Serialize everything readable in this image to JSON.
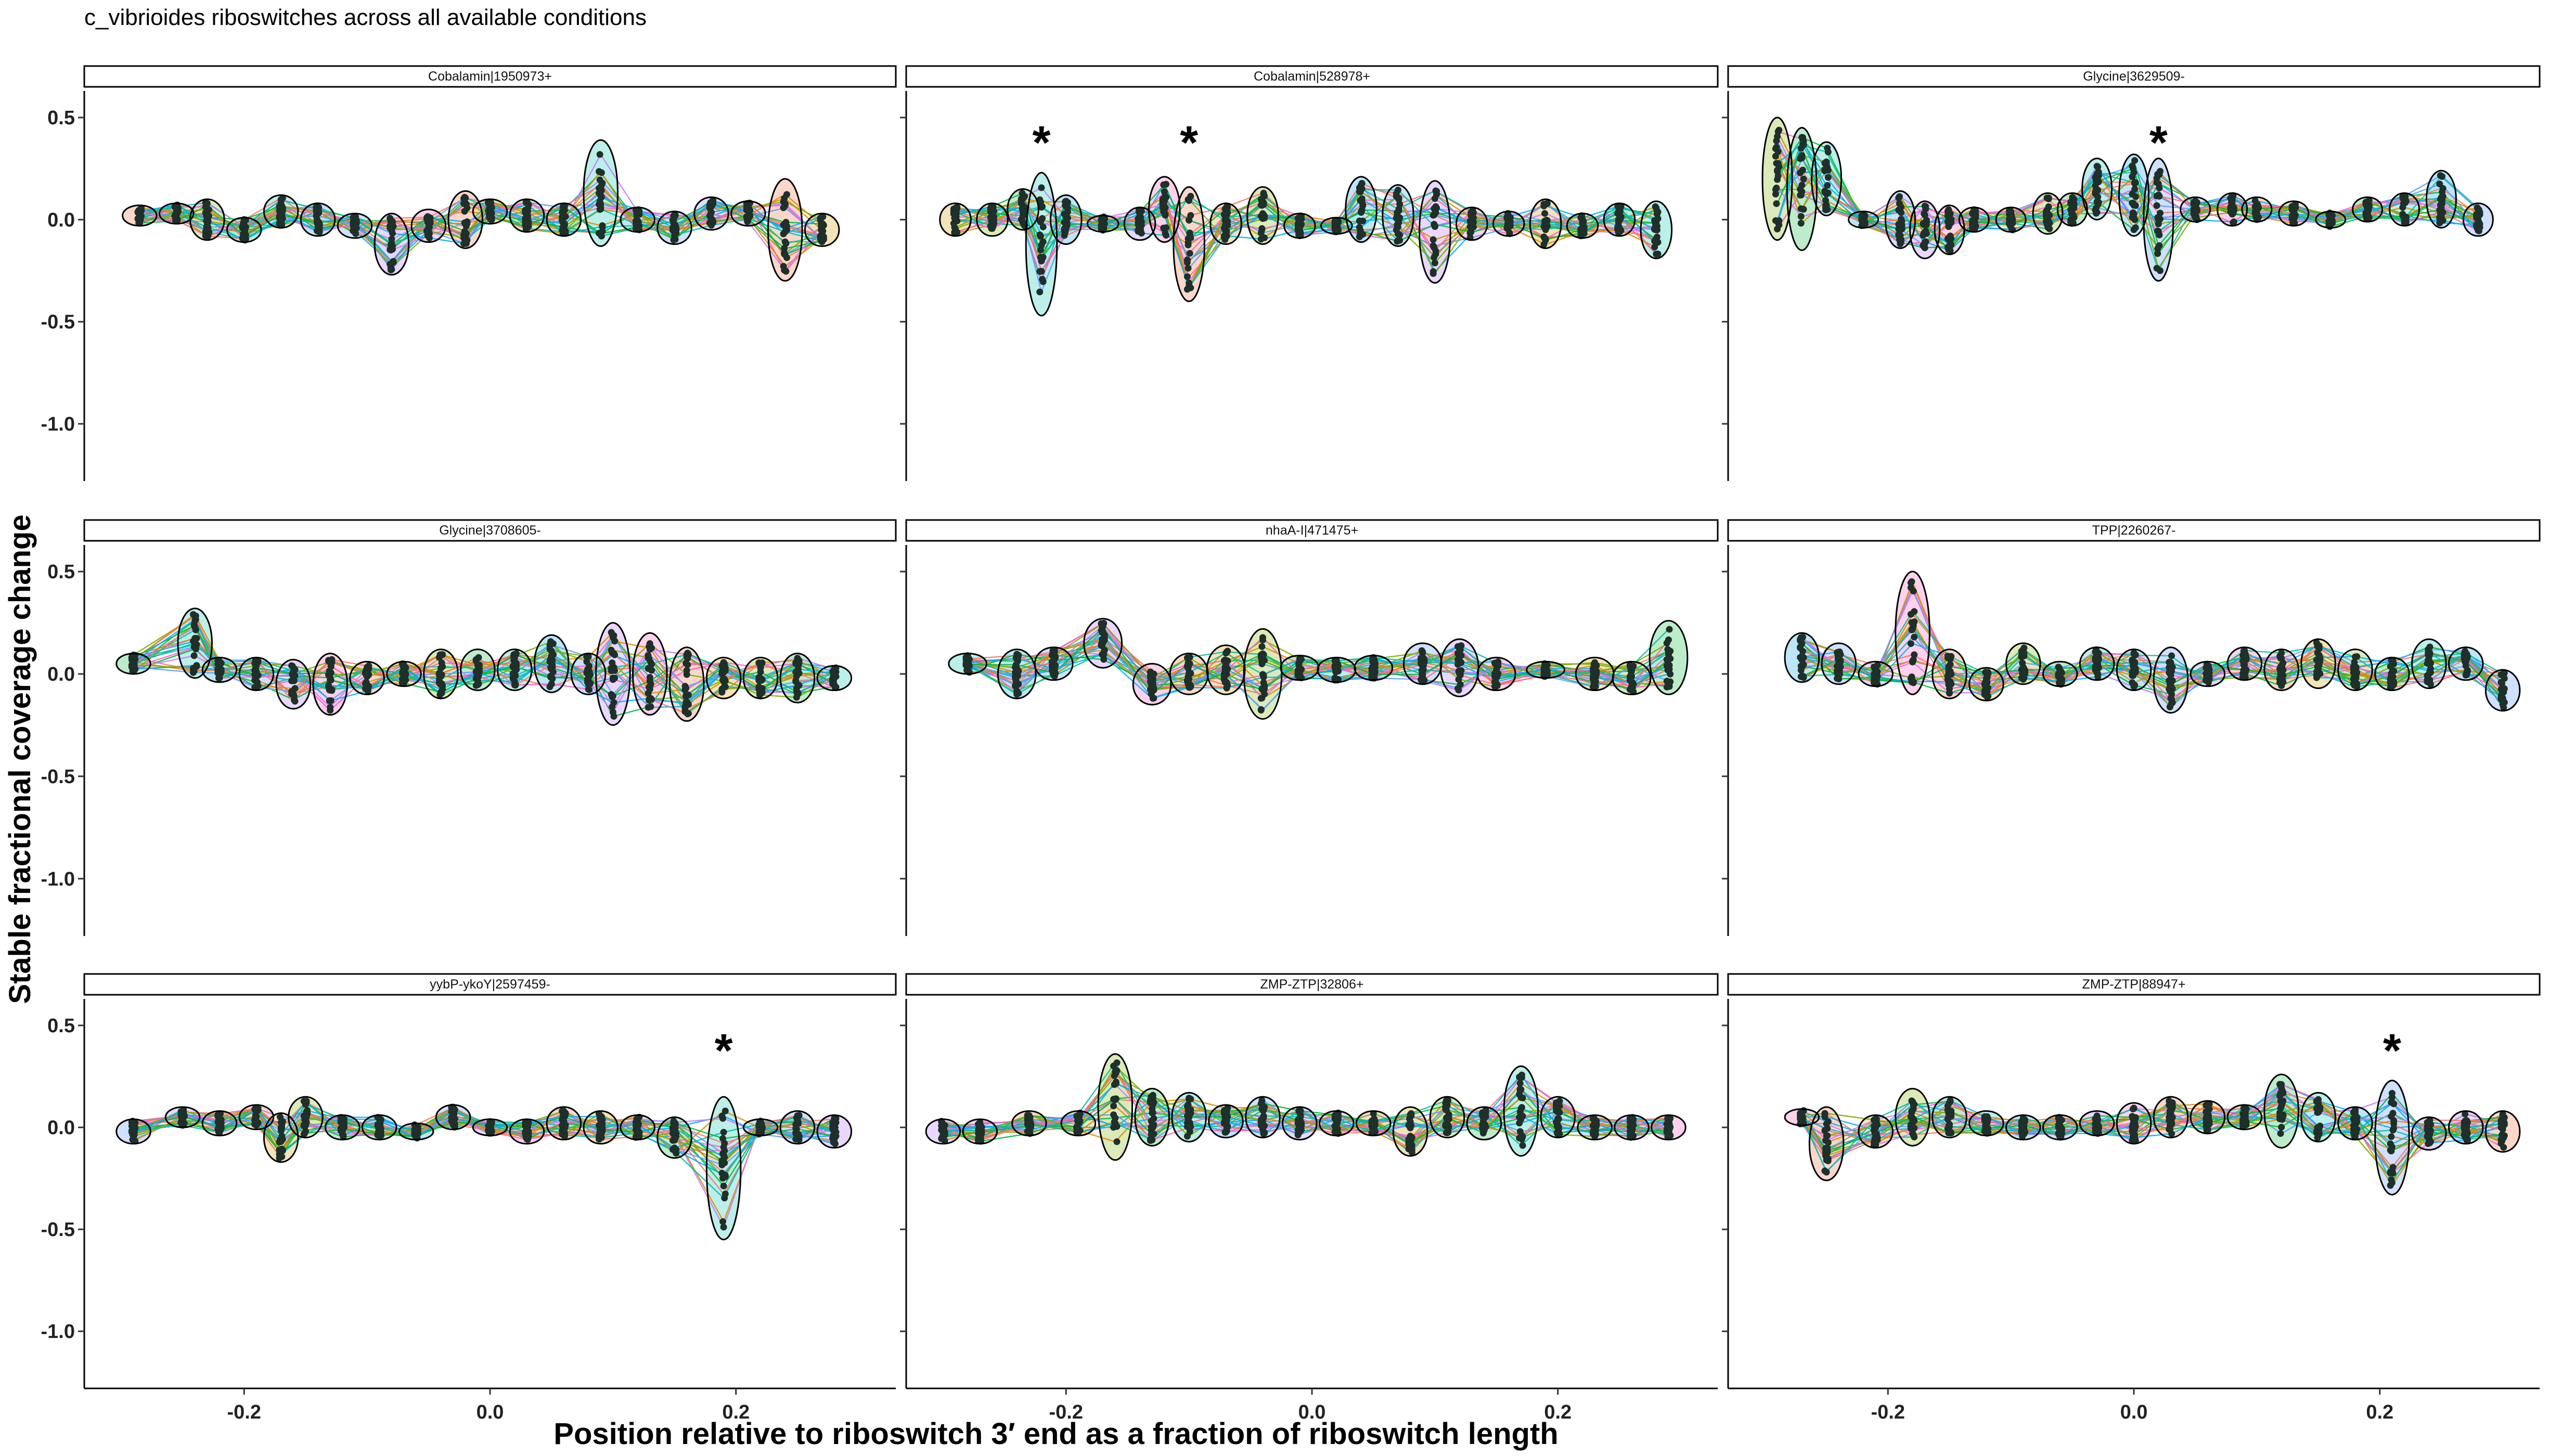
{
  "figure": {
    "title": "c_vibrioides riboswitches across all available conditions",
    "xlabel": "Position relative to riboswitch 3′ end as a fraction of riboswitch length",
    "ylabel": "Stable fractional coverage change"
  },
  "chart_data": {
    "type": "scatter",
    "xlim": [
      -0.33,
      0.33
    ],
    "ylim": [
      -1.28,
      0.63
    ],
    "x_ticks": [
      -0.2,
      0.0,
      0.2
    ],
    "x_tick_labels": [
      "-0.2",
      "0.0",
      "0.2"
    ],
    "y_ticks": [
      0.5,
      0.0,
      -0.5,
      -1.0
    ],
    "y_tick_labels": [
      "0.5",
      "0.0",
      "-0.5",
      "-1.0"
    ],
    "grid": false,
    "legend": "none",
    "line_colors": [
      "#F8766D",
      "#DE8C00",
      "#7CAE00",
      "#00BA38",
      "#00C1A3",
      "#00B0F6",
      "#619CFF",
      "#C77CFF",
      "#FF61C3"
    ],
    "ellipse_fills": [
      "#F8C9B8",
      "#EFD9A0",
      "#CFE3A0",
      "#A6E5B8",
      "#A6E9E2",
      "#A6DCF6",
      "#C0D6FF",
      "#E3C9FF",
      "#FFC2E5"
    ],
    "panels": [
      {
        "label": "Cobalamin|1950973+",
        "positions": [
          -0.285,
          -0.255,
          -0.23,
          -0.2,
          -0.17,
          -0.14,
          -0.11,
          -0.08,
          -0.05,
          -0.02,
          0.0,
          0.03,
          0.06,
          0.09,
          0.12,
          0.15,
          0.18,
          0.21,
          0.24,
          0.27
        ],
        "mean": [
          0.02,
          0.03,
          0.0,
          -0.05,
          0.04,
          0.0,
          -0.03,
          -0.12,
          -0.03,
          0.0,
          0.04,
          0.02,
          0.0,
          0.13,
          0.0,
          -0.04,
          0.03,
          0.03,
          -0.05,
          -0.05
        ],
        "spread": [
          0.05,
          0.05,
          0.1,
          0.06,
          0.08,
          0.08,
          0.06,
          0.15,
          0.08,
          0.14,
          0.06,
          0.08,
          0.08,
          0.26,
          0.06,
          0.08,
          0.08,
          0.06,
          0.25,
          0.08
        ],
        "stars": []
      },
      {
        "label": "Cobalamin|528978+",
        "positions": [
          -0.29,
          -0.26,
          -0.235,
          -0.22,
          -0.2,
          -0.17,
          -0.14,
          -0.12,
          -0.1,
          -0.07,
          -0.04,
          -0.01,
          0.02,
          0.04,
          0.07,
          0.1,
          0.13,
          0.16,
          0.19,
          0.22,
          0.25,
          0.28
        ],
        "mean": [
          0.0,
          0.0,
          0.05,
          -0.12,
          0.0,
          -0.02,
          -0.02,
          0.05,
          -0.12,
          -0.02,
          0.02,
          -0.03,
          -0.03,
          0.05,
          0.02,
          -0.06,
          -0.02,
          -0.02,
          -0.02,
          -0.03,
          0.0,
          -0.05
        ],
        "spread": [
          0.08,
          0.08,
          0.1,
          0.35,
          0.12,
          0.04,
          0.08,
          0.16,
          0.28,
          0.1,
          0.14,
          0.06,
          0.04,
          0.16,
          0.15,
          0.25,
          0.08,
          0.06,
          0.12,
          0.06,
          0.08,
          0.14
        ],
        "stars": [
          -0.22,
          -0.1
        ]
      },
      {
        "label": "Glycine|3629509-",
        "positions": [
          -0.29,
          -0.27,
          -0.25,
          -0.22,
          -0.19,
          -0.17,
          -0.15,
          -0.13,
          -0.1,
          -0.07,
          -0.05,
          -0.03,
          0.0,
          0.02,
          0.05,
          0.08,
          0.1,
          0.13,
          0.16,
          0.19,
          0.22,
          0.25,
          0.28
        ],
        "mean": [
          0.2,
          0.15,
          0.2,
          0.0,
          0.0,
          -0.05,
          -0.05,
          0.0,
          0.0,
          0.03,
          0.05,
          0.15,
          0.12,
          0.0,
          0.05,
          0.05,
          0.05,
          0.03,
          0.0,
          0.05,
          0.05,
          0.1,
          0.0
        ],
        "spread": [
          0.3,
          0.3,
          0.18,
          0.04,
          0.14,
          0.14,
          0.12,
          0.06,
          0.06,
          0.1,
          0.08,
          0.15,
          0.2,
          0.3,
          0.06,
          0.08,
          0.06,
          0.06,
          0.04,
          0.06,
          0.08,
          0.14,
          0.08
        ],
        "stars": [
          0.02
        ]
      },
      {
        "label": "Glycine|3708605-",
        "positions": [
          -0.29,
          -0.24,
          -0.22,
          -0.19,
          -0.16,
          -0.13,
          -0.1,
          -0.07,
          -0.04,
          -0.01,
          0.02,
          0.05,
          0.08,
          0.1,
          0.13,
          0.16,
          0.19,
          0.22,
          0.25,
          0.28
        ],
        "mean": [
          0.05,
          0.15,
          0.02,
          0.0,
          -0.05,
          -0.05,
          -0.02,
          0.0,
          0.0,
          0.02,
          0.02,
          0.05,
          0.0,
          0.0,
          0.0,
          -0.05,
          -0.02,
          -0.02,
          -0.02,
          -0.02
        ],
        "spread": [
          0.05,
          0.17,
          0.06,
          0.08,
          0.12,
          0.15,
          0.08,
          0.06,
          0.12,
          0.1,
          0.1,
          0.14,
          0.1,
          0.25,
          0.2,
          0.18,
          0.1,
          0.1,
          0.12,
          0.06
        ],
        "stars": []
      },
      {
        "label": "nhaA-I|471475+",
        "positions": [
          -0.28,
          -0.24,
          -0.21,
          -0.17,
          -0.13,
          -0.1,
          -0.07,
          -0.04,
          -0.01,
          0.02,
          0.05,
          0.09,
          0.12,
          0.15,
          0.19,
          0.23,
          0.26,
          0.29
        ],
        "mean": [
          0.05,
          0.0,
          0.05,
          0.15,
          -0.05,
          0.0,
          0.02,
          0.0,
          0.03,
          0.02,
          0.03,
          0.05,
          0.03,
          0.0,
          0.02,
          0.0,
          -0.02,
          0.08
        ],
        "spread": [
          0.05,
          0.12,
          0.08,
          0.12,
          0.1,
          0.1,
          0.12,
          0.22,
          0.06,
          0.06,
          0.06,
          0.1,
          0.14,
          0.08,
          0.04,
          0.08,
          0.08,
          0.18
        ],
        "stars": []
      },
      {
        "label": "TPP|2260267-",
        "positions": [
          -0.27,
          -0.24,
          -0.21,
          -0.18,
          -0.15,
          -0.12,
          -0.09,
          -0.06,
          -0.03,
          0.0,
          0.03,
          0.06,
          0.09,
          0.12,
          0.15,
          0.18,
          0.21,
          0.24,
          0.27,
          0.3
        ],
        "mean": [
          0.08,
          0.05,
          0.0,
          0.2,
          0.0,
          -0.05,
          0.05,
          0.0,
          0.05,
          0.02,
          -0.03,
          0.0,
          0.05,
          0.02,
          0.05,
          0.02,
          0.0,
          0.05,
          0.05,
          -0.08
        ],
        "spread": [
          0.12,
          0.1,
          0.06,
          0.3,
          0.12,
          0.08,
          0.1,
          0.06,
          0.08,
          0.1,
          0.16,
          0.06,
          0.08,
          0.1,
          0.12,
          0.1,
          0.08,
          0.12,
          0.08,
          0.1
        ],
        "stars": []
      },
      {
        "label": "yybP-ykoY|2597459-",
        "positions": [
          -0.29,
          -0.25,
          -0.22,
          -0.19,
          -0.17,
          -0.15,
          -0.12,
          -0.09,
          -0.06,
          -0.03,
          0.0,
          0.03,
          0.06,
          0.09,
          0.12,
          0.15,
          0.19,
          0.22,
          0.25,
          0.28
        ],
        "mean": [
          -0.02,
          0.05,
          0.02,
          0.05,
          -0.05,
          0.05,
          0.0,
          0.0,
          -0.02,
          0.05,
          0.0,
          -0.02,
          0.02,
          0.0,
          0.0,
          -0.05,
          -0.2,
          0.0,
          0.0,
          -0.02
        ],
        "spread": [
          0.06,
          0.05,
          0.06,
          0.06,
          0.12,
          0.1,
          0.06,
          0.06,
          0.04,
          0.06,
          0.04,
          0.06,
          0.08,
          0.08,
          0.06,
          0.1,
          0.35,
          0.04,
          0.08,
          0.08
        ],
        "stars": [
          0.19
        ]
      },
      {
        "label": "ZMP-ZTP|32806+",
        "positions": [
          -0.3,
          -0.27,
          -0.23,
          -0.19,
          -0.16,
          -0.13,
          -0.1,
          -0.07,
          -0.04,
          -0.01,
          0.02,
          0.05,
          0.08,
          0.11,
          0.14,
          0.17,
          0.2,
          0.23,
          0.26,
          0.29
        ],
        "mean": [
          -0.02,
          -0.02,
          0.02,
          0.02,
          0.1,
          0.05,
          0.05,
          0.03,
          0.05,
          0.02,
          0.02,
          0.02,
          -0.02,
          0.05,
          0.02,
          0.08,
          0.05,
          0.0,
          0.0,
          0.0
        ],
        "spread": [
          0.06,
          0.06,
          0.06,
          0.06,
          0.26,
          0.14,
          0.12,
          0.08,
          0.1,
          0.08,
          0.06,
          0.06,
          0.12,
          0.1,
          0.08,
          0.22,
          0.1,
          0.06,
          0.06,
          0.06
        ],
        "stars": []
      },
      {
        "label": "ZMP-ZTP|88947+",
        "positions": [
          -0.27,
          -0.25,
          -0.21,
          -0.18,
          -0.15,
          -0.12,
          -0.09,
          -0.06,
          -0.03,
          0.0,
          0.03,
          0.06,
          0.09,
          0.12,
          0.15,
          0.18,
          0.21,
          0.24,
          0.27,
          0.3
        ],
        "mean": [
          0.05,
          -0.08,
          -0.02,
          0.05,
          0.05,
          0.02,
          0.0,
          0.0,
          0.02,
          0.02,
          0.05,
          0.05,
          0.05,
          0.08,
          0.05,
          0.02,
          -0.05,
          -0.03,
          0.0,
          -0.02
        ],
        "spread": [
          0.04,
          0.18,
          0.08,
          0.14,
          0.1,
          0.06,
          0.06,
          0.06,
          0.06,
          0.1,
          0.1,
          0.08,
          0.06,
          0.18,
          0.12,
          0.08,
          0.28,
          0.08,
          0.08,
          0.1
        ],
        "stars": [
          0.21
        ]
      }
    ]
  }
}
